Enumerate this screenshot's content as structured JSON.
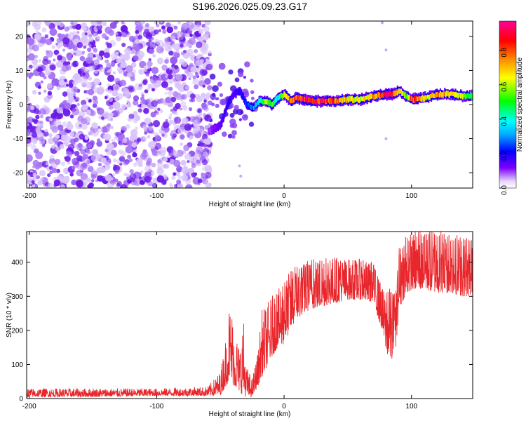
{
  "title": "S196.2026.025.09.23.G17",
  "colors": {
    "snr_line": "#e8262b",
    "frame": "#000000",
    "scatter_base": "#7a2cf0",
    "colormap": [
      "#ffffff",
      "#7d00ff",
      "#0000ff",
      "#00ffff",
      "#00ff00",
      "#ffff00",
      "#ff8000",
      "#ff0000",
      "#ff0099"
    ]
  },
  "chart_data": [
    {
      "type": "heatmap",
      "name": "spectrogram",
      "xlabel": "Height of straight line (km)",
      "ylabel": "Frequency (Hz)",
      "xlim": [
        -202,
        148
      ],
      "ylim": [
        -24.5,
        24.5
      ],
      "xticks": [
        -200,
        -100,
        0,
        100
      ],
      "xtick_labels": [
        "-200",
        "-100",
        "0",
        "100"
      ],
      "yticks": [
        -20,
        -10,
        0,
        10,
        20
      ],
      "ytick_labels": [
        "-20",
        "-10",
        "0",
        "10",
        "20"
      ],
      "noise_region_x": [
        -202,
        -60
      ],
      "signal_track": {
        "x": [
          -60,
          -50,
          -45,
          -40,
          -35,
          -30,
          -25,
          -20,
          -15,
          -10,
          -5,
          0,
          5,
          10,
          20,
          30,
          40,
          50,
          60,
          70,
          80,
          85,
          90,
          95,
          100,
          110,
          120,
          130,
          140,
          148
        ],
        "freq": [
          -8,
          -6,
          0,
          3,
          4,
          0,
          -1,
          1,
          1,
          0,
          2,
          3,
          1,
          2,
          1,
          1,
          1,
          1.5,
          1.5,
          2.5,
          3,
          3,
          4,
          2.5,
          1.5,
          2,
          3,
          3,
          2.5,
          2.5
        ],
        "amplitude": [
          0.1,
          0.15,
          0.2,
          0.15,
          0.2,
          0.25,
          0.3,
          0.4,
          0.6,
          0.55,
          0.4,
          0.7,
          0.8,
          0.9,
          0.95,
          0.9,
          0.85,
          0.7,
          0.65,
          0.75,
          0.95,
          0.9,
          0.7,
          0.6,
          0.9,
          0.65,
          0.8,
          0.7,
          0.6,
          0.5
        ]
      }
    },
    {
      "type": "colorbar",
      "label": "Normalized spectral amplitude",
      "range": [
        0.0,
        0.97
      ],
      "ticks": [
        0.0,
        0.2,
        0.4,
        0.6,
        0.8
      ],
      "tick_labels": [
        "0.0",
        "0.2",
        "0.4",
        "0.6",
        "0.8"
      ]
    },
    {
      "type": "line",
      "name": "snr",
      "xlabel": "Height of straight line (km)",
      "ylabel": "SNR (10 * v/v)",
      "xlim": [
        -202,
        148
      ],
      "ylim": [
        0,
        490
      ],
      "xticks": [
        -200,
        -100,
        0,
        100
      ],
      "xtick_labels": [
        "-200",
        "-100",
        "0",
        "100"
      ],
      "yticks": [
        0,
        100,
        200,
        300,
        400
      ],
      "ytick_labels": [
        "0",
        "100",
        "200",
        "300",
        "400"
      ],
      "envelope": {
        "x": [
          -202,
          -150,
          -100,
          -60,
          -50,
          -45,
          -43,
          -40,
          -35,
          -32,
          -30,
          -25,
          -20,
          -18,
          -15,
          -10,
          -5,
          0,
          5,
          10,
          15,
          20,
          30,
          40,
          50,
          60,
          70,
          77,
          80,
          82,
          85,
          88,
          90,
          95,
          100,
          110,
          120,
          130,
          140,
          148
        ],
        "low": [
          5,
          5,
          8,
          8,
          10,
          40,
          60,
          40,
          20,
          10,
          5,
          5,
          40,
          60,
          80,
          120,
          150,
          160,
          200,
          230,
          250,
          260,
          270,
          280,
          290,
          290,
          280,
          200,
          140,
          120,
          110,
          140,
          260,
          300,
          320,
          320,
          310,
          310,
          300,
          300
        ],
        "high": [
          30,
          30,
          30,
          35,
          80,
          200,
          280,
          250,
          150,
          250,
          100,
          60,
          150,
          260,
          270,
          300,
          320,
          340,
          380,
          390,
          400,
          410,
          410,
          420,
          410,
          410,
          400,
          330,
          300,
          320,
          310,
          320,
          430,
          460,
          470,
          480,
          480,
          470,
          460,
          450
        ]
      }
    }
  ]
}
